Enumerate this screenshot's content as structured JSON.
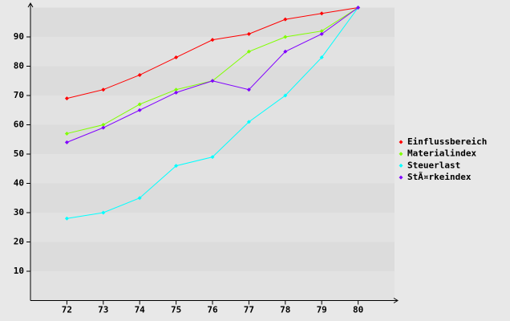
{
  "chart_data": {
    "type": "line",
    "x": [
      72,
      73,
      74,
      75,
      76,
      77,
      78,
      79,
      80
    ],
    "xlim": [
      71,
      81
    ],
    "xticks": [
      72,
      73,
      74,
      75,
      76,
      77,
      78,
      79,
      80
    ],
    "ylim": [
      0,
      100
    ],
    "yticks": [
      10,
      20,
      30,
      40,
      50,
      60,
      70,
      80,
      90
    ],
    "legend": "right",
    "series": [
      {
        "name": "Einflussbereich",
        "color": "#ff0000",
        "values": [
          69,
          72,
          77,
          83,
          89,
          91,
          96,
          98,
          100
        ]
      },
      {
        "name": "Materialindex",
        "color": "#80ff00",
        "values": [
          57,
          60,
          67,
          72,
          75,
          85,
          90,
          92,
          100
        ]
      },
      {
        "name": "Steuerlast",
        "color": "#00ffff",
        "values": [
          28,
          30,
          35,
          46,
          49,
          61,
          70,
          83,
          100
        ]
      },
      {
        "name": "StÃ¤rkeindex",
        "color": "#8000ff",
        "values": [
          54,
          59,
          65,
          71,
          75,
          72,
          85,
          91,
          100
        ]
      }
    ]
  }
}
